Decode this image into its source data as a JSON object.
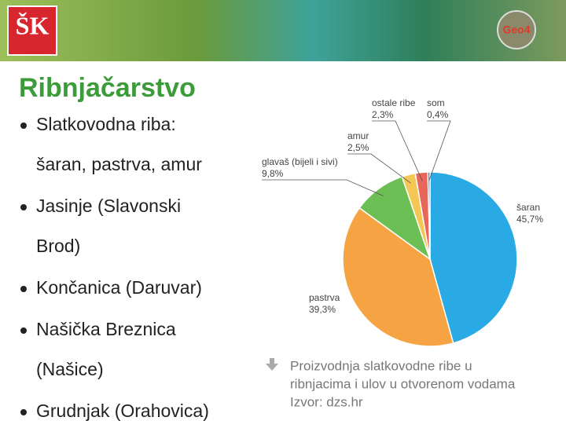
{
  "header": {
    "logo": "ŠK",
    "badge": "Geo4"
  },
  "title": "Ribnjačarstvo",
  "bullets": [
    [
      "Slatkovodna riba:",
      "šaran, pastrva, amur"
    ],
    [
      "Jasinje (Slavonski",
      "Brod)"
    ],
    [
      "Končanica (Daruvar)"
    ],
    [
      "Našička Breznica",
      "(Našice)"
    ],
    [
      "Grudnjak (Orahovica)"
    ]
  ],
  "chart_data": {
    "type": "pie",
    "categories": [
      "šaran",
      "pastrva",
      "glavaš (bijeli i sivi)",
      "amur",
      "ostale ribe",
      "som"
    ],
    "values": [
      45.7,
      39.3,
      9.8,
      2.5,
      2.3,
      0.4
    ],
    "value_labels": [
      "45,7%",
      "39,3%",
      "9,8%",
      "2,5%",
      "2,3%",
      "0,4%"
    ],
    "colors": [
      "#2aaae4",
      "#f6a443",
      "#6bbf55",
      "#f4c653",
      "#e8675b",
      "#7c5fa8"
    ]
  },
  "caption": [
    "Proizvodnja slatkovodne ribe u",
    "ribnjacima i ulov u otvorenom vodama",
    "Izvor: dzs.hr"
  ]
}
